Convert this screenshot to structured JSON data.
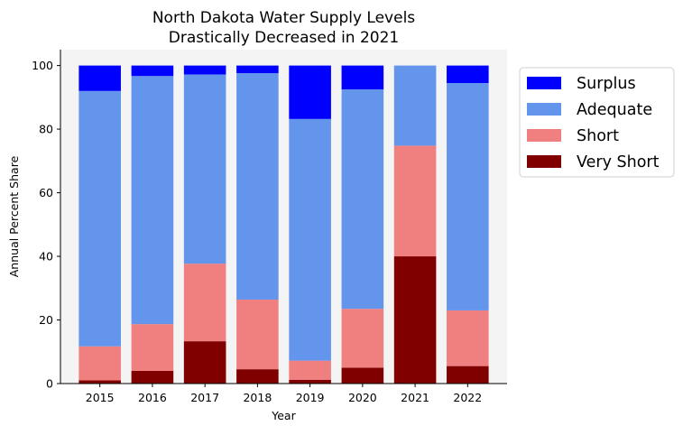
{
  "chart_data": {
    "type": "bar",
    "stacked": true,
    "title_lines": [
      "North Dakota Water Supply Levels",
      "Drastically Decreased in 2021"
    ],
    "xlabel": "Year",
    "ylabel": "Annual Percent Share",
    "categories": [
      "2015",
      "2016",
      "2017",
      "2018",
      "2019",
      "2020",
      "2021",
      "2022"
    ],
    "ylim": [
      0,
      105
    ],
    "yticks": [
      0,
      20,
      40,
      60,
      80,
      100
    ],
    "grid": false,
    "legend_position": "outside-right-top",
    "series": [
      {
        "name": "Very Short",
        "color": "#800000",
        "values": [
          1.0,
          4.0,
          13.3,
          4.5,
          1.2,
          5.0,
          40.0,
          5.5
        ]
      },
      {
        "name": "Short",
        "color": "#f08080",
        "values": [
          10.7,
          14.7,
          24.4,
          21.9,
          6.0,
          18.5,
          34.8,
          17.5
        ]
      },
      {
        "name": "Adequate",
        "color": "#6495ed",
        "values": [
          80.3,
          78.0,
          59.5,
          71.2,
          76.0,
          69.0,
          25.2,
          71.5
        ]
      },
      {
        "name": "Surplus",
        "color": "#0000ff",
        "values": [
          8.0,
          3.3,
          2.8,
          2.4,
          16.8,
          7.5,
          0.0,
          5.5
        ]
      }
    ],
    "legend_order": [
      "Surplus",
      "Adequate",
      "Short",
      "Very Short"
    ],
    "plot_background": "#f4f4f4"
  }
}
